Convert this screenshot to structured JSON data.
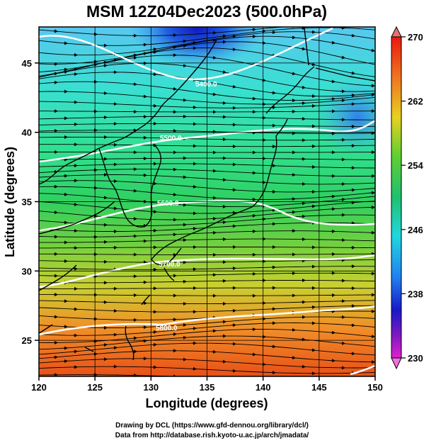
{
  "title": "MSM 12Z04Dec2023 (500.0hPa)",
  "xlabel": "Longitude (degrees)",
  "ylabel": "Latitude  (degrees)",
  "footer": {
    "line1": "Drawing by DCL (https://www.gfd-dennou.org/library/dcl/)",
    "line2": "Data from http://database.rish.kyoto-u.ac.jp/arch/jmadata/"
  },
  "map": {
    "lon_range": [
      120,
      150
    ],
    "lat_range": [
      22.4,
      47.6
    ],
    "x_ticks": [
      "120",
      "125",
      "130",
      "135",
      "140",
      "145",
      "150"
    ],
    "y_ticks": [
      "25",
      "30",
      "35",
      "40",
      "45"
    ],
    "grid": true
  },
  "colorbar": {
    "range": [
      230,
      270
    ],
    "tick_labels": [
      "270",
      "262",
      "254",
      "246",
      "238",
      "230"
    ],
    "units": ""
  },
  "contours": {
    "labels": [
      "5400.0",
      "5500.0",
      "5600.0",
      "5700.0",
      "5800.0"
    ],
    "color": "#ffffff"
  },
  "colors": {
    "cold": "#1020d0",
    "cyan": "#20d8e0",
    "green": "#30d070",
    "warm": "#e86820",
    "coast": "#000000",
    "streamline": "#000000"
  }
}
